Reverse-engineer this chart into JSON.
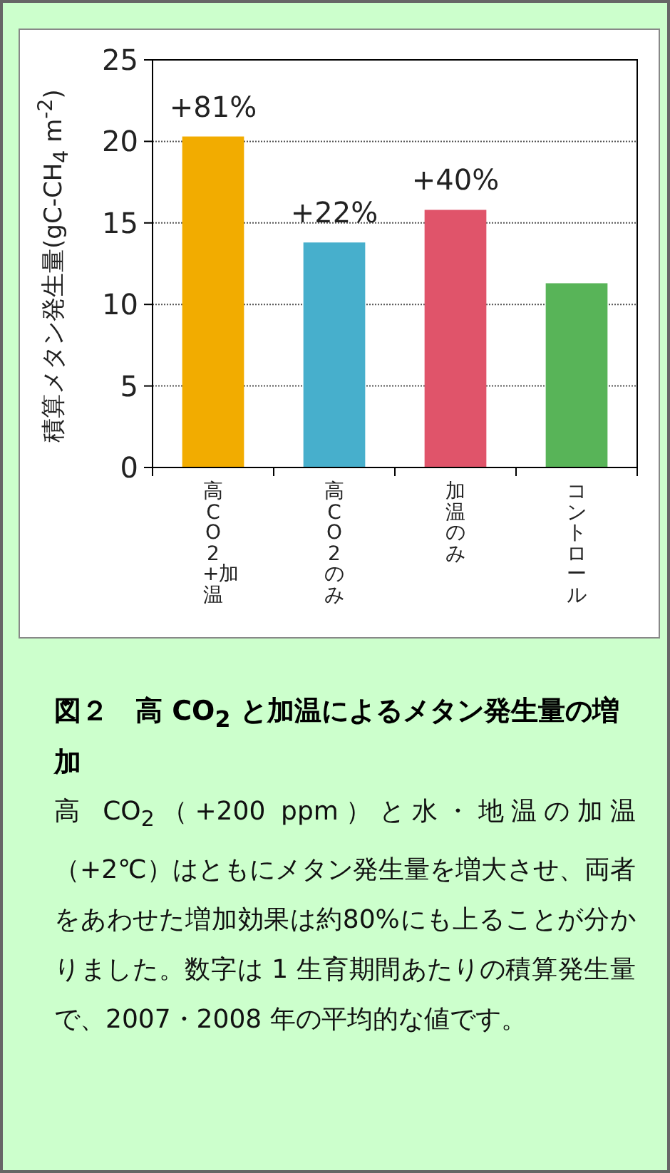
{
  "chart_data": {
    "type": "bar",
    "title": "図２　高 CO$_{2}$ と加温によるメタン発生量の増加",
    "annotations": [
      "高 CO$_{2}$（+200 ppm）と水・地温の加温（+2℃）はともにメタン発生量を増大させ、両者をあわせた増加効果は約80%にも上ることが分かりました。数字は 1 生育期間あたりの積算発生量で、2007・2008 年の平均的な値です。",
      {
        "text": "+81%",
        "x": "高CO2 +加温",
        "y": 20.3
      },
      {
        "text": "+22%",
        "x": "高CO2のみ",
        "y": 13.8
      },
      {
        "text": "+40%",
        "x": "加温のみ",
        "y": 15.8
      }
    ],
    "ylabel": "積算メタン発生量(gC-CH$_{4}$ m$^{-2}$)",
    "categories": [
      "高CO2 +加温",
      "高CO2のみ",
      "加温のみ",
      "コントロール"
    ],
    "values": [
      20.3,
      13.8,
      15.8,
      11.3
    ],
    "colors": [
      "#f2ac00",
      "#47afcc",
      "#e0546a",
      "#58b458"
    ],
    "ylim": [
      0,
      25
    ],
    "yticks": [
      0,
      5,
      10,
      15,
      20,
      25
    ],
    "grid": "y"
  }
}
